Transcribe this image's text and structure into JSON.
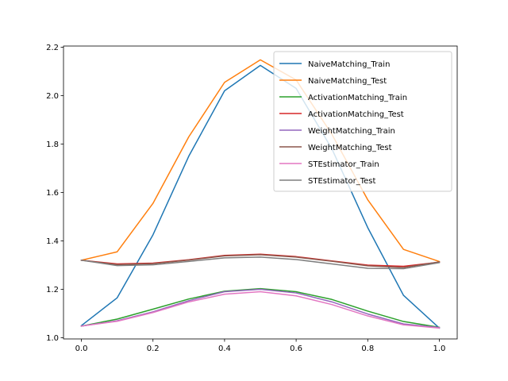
{
  "chart_data": {
    "type": "line",
    "title": "",
    "xlabel": "",
    "ylabel": "",
    "xlim": [
      -0.05,
      1.05
    ],
    "ylim": [
      0.995,
      2.205
    ],
    "xticks": [
      0.0,
      0.2,
      0.4,
      0.6,
      0.8,
      1.0
    ],
    "xtick_labels": [
      "0.0",
      "0.2",
      "0.4",
      "0.6",
      "0.8",
      "1.0"
    ],
    "yticks": [
      1.0,
      1.2,
      1.4,
      1.6,
      1.8,
      2.0,
      2.2
    ],
    "ytick_labels": [
      "1.0",
      "1.2",
      "1.4",
      "1.6",
      "1.8",
      "2.0",
      "2.2"
    ],
    "grid": false,
    "legend_position": "upper-right",
    "x": [
      0.0,
      0.1,
      0.2,
      0.3,
      0.4,
      0.5,
      0.6,
      0.7,
      0.8,
      0.9,
      1.0
    ],
    "series": [
      {
        "name": "NaiveMatching_Train",
        "color": "#1f77b4",
        "values": [
          1.05,
          1.165,
          1.425,
          1.75,
          2.02,
          2.125,
          2.03,
          1.78,
          1.455,
          1.175,
          1.04
        ]
      },
      {
        "name": "NaiveMatching_Test",
        "color": "#ff7f0e",
        "values": [
          1.32,
          1.355,
          1.555,
          1.83,
          2.055,
          2.148,
          2.065,
          1.84,
          1.57,
          1.365,
          1.315
        ]
      },
      {
        "name": "ActivationMatching_Train",
        "color": "#2ca02c",
        "values": [
          1.048,
          1.077,
          1.118,
          1.16,
          1.192,
          1.203,
          1.19,
          1.158,
          1.11,
          1.067,
          1.043
        ]
      },
      {
        "name": "ActivationMatching_Test",
        "color": "#d62728",
        "values": [
          1.32,
          1.305,
          1.308,
          1.322,
          1.34,
          1.345,
          1.335,
          1.317,
          1.3,
          1.295,
          1.312
        ]
      },
      {
        "name": "WeightMatching_Train",
        "color": "#9467bd",
        "values": [
          1.048,
          1.07,
          1.107,
          1.153,
          1.19,
          1.2,
          1.185,
          1.148,
          1.098,
          1.057,
          1.042
        ]
      },
      {
        "name": "WeightMatching_Test",
        "color": "#8c564b",
        "values": [
          1.32,
          1.302,
          1.306,
          1.321,
          1.338,
          1.343,
          1.333,
          1.316,
          1.297,
          1.29,
          1.313
        ]
      },
      {
        "name": "STEstimator_Train",
        "color": "#e377c2",
        "values": [
          1.048,
          1.068,
          1.104,
          1.148,
          1.18,
          1.19,
          1.173,
          1.137,
          1.09,
          1.053,
          1.04
        ]
      },
      {
        "name": "STEstimator_Test",
        "color": "#7f7f7f",
        "values": [
          1.32,
          1.298,
          1.301,
          1.315,
          1.33,
          1.333,
          1.323,
          1.305,
          1.287,
          1.285,
          1.31
        ]
      }
    ]
  }
}
